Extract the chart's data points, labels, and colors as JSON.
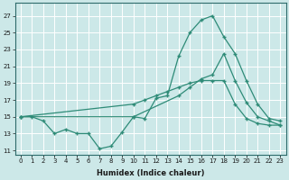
{
  "line1_x": [
    0,
    1,
    2,
    3,
    4,
    5,
    6,
    7,
    8,
    9,
    10,
    11,
    12,
    13,
    14,
    15,
    16,
    17,
    18,
    19,
    20,
    21,
    22,
    23
  ],
  "line1_y": [
    15,
    15,
    14.5,
    13,
    13.5,
    13,
    13,
    11.2,
    11.5,
    13.2,
    15,
    14.8,
    17.2,
    17.5,
    22.2,
    25,
    26.5,
    27,
    24.5,
    22.5,
    19.3,
    16.5,
    14.8,
    14.5
  ],
  "line2_x": [
    0,
    10,
    11,
    12,
    13,
    14,
    15,
    16,
    17,
    18,
    19,
    20,
    21,
    22,
    23
  ],
  "line2_y": [
    15,
    16.5,
    17,
    17.5,
    18,
    18.5,
    19,
    19.3,
    19.3,
    19.3,
    16.5,
    14.8,
    14.2,
    14,
    14
  ],
  "line3_x": [
    0,
    10,
    14,
    15,
    16,
    17,
    18,
    19,
    20,
    21,
    22,
    23
  ],
  "line3_y": [
    15,
    15,
    17.5,
    18.5,
    19.5,
    20,
    22.5,
    19.3,
    16.7,
    15,
    14.5,
    14
  ],
  "line_color": "#2e8b77",
  "bg_color": "#cce8e8",
  "grid_color": "#b8d8d8",
  "xlabel": "Humidex (Indice chaleur)",
  "ylabel_ticks": [
    11,
    13,
    15,
    17,
    19,
    21,
    23,
    25,
    27
  ],
  "xlim": [
    -0.5,
    23.5
  ],
  "ylim": [
    10.5,
    28.5
  ],
  "xticks": [
    0,
    1,
    2,
    3,
    4,
    5,
    6,
    7,
    8,
    9,
    10,
    11,
    12,
    13,
    14,
    15,
    16,
    17,
    18,
    19,
    20,
    21,
    22,
    23
  ],
  "xtick_labels": [
    "0",
    "1",
    "2",
    "3",
    "4",
    "5",
    "6",
    "7",
    "8",
    "9",
    "10",
    "11",
    "12",
    "13",
    "14",
    "15",
    "16",
    "17",
    "18",
    "19",
    "20",
    "21",
    "22",
    "23"
  ]
}
